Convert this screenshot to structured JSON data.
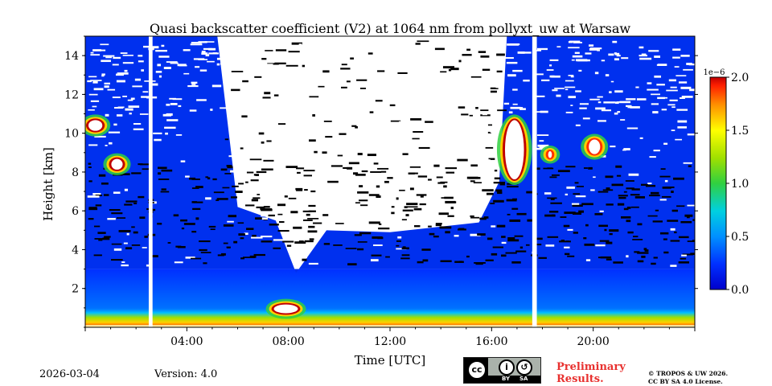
{
  "chart_data": {
    "type": "heatmap",
    "title": "Quasi backscatter coefficient (V2) at 1064 nm from pollyxt_uw at Warsaw",
    "xlabel": "Time [UTC]",
    "ylabel": "Height [km]",
    "xlim": [
      0,
      24
    ],
    "ylim": [
      0,
      15
    ],
    "x_tick_labels": [
      {
        "value": 4,
        "label": "04:00"
      },
      {
        "value": 8,
        "label": "08:00"
      },
      {
        "value": 12,
        "label": "12:00"
      },
      {
        "value": 16,
        "label": "16:00"
      },
      {
        "value": 20,
        "label": "20:00"
      }
    ],
    "y_ticks": [
      2,
      4,
      6,
      8,
      10,
      12,
      14
    ],
    "colorbar": {
      "min": 0.0,
      "max": 2.0,
      "scale_label": "1e−6",
      "ticks": [
        "0.0",
        "0.5",
        "1.0",
        "1.5",
        "2.0"
      ],
      "colormap": [
        "#0000cc",
        "#0040ff",
        "#00a0ff",
        "#00e0c0",
        "#30d040",
        "#a0e000",
        "#ffff00",
        "#ffa000",
        "#ff3000",
        "#c00000"
      ]
    },
    "data_gaps_hours": [
      [
        2.5,
        2.65
      ],
      [
        17.6,
        17.78
      ]
    ],
    "features": [
      {
        "name": "boundary layer aerosol",
        "time": [
          0,
          24
        ],
        "height": [
          0,
          0.9
        ],
        "value": 1.2
      },
      {
        "name": "cirrus cloud",
        "time": [
          0,
          0.8
        ],
        "height": [
          10,
          10.8
        ],
        "value": 2.0
      },
      {
        "name": "cirrus cloud",
        "time": [
          0.9,
          1.6
        ],
        "height": [
          8,
          8.8
        ],
        "value": 2.0
      },
      {
        "name": "cloud",
        "time": [
          7.3,
          8.5
        ],
        "height": [
          0.6,
          1.3
        ],
        "value": 2.0
      },
      {
        "name": "cloud",
        "time": [
          16.4,
          17.4
        ],
        "height": [
          7.5,
          10.8
        ],
        "value": 2.0
      },
      {
        "name": "cirrus cloud",
        "time": [
          18.1,
          18.5
        ],
        "height": [
          8.6,
          9.2
        ],
        "value": 1.8
      },
      {
        "name": "cirrus cloud",
        "time": [
          19.7,
          20.4
        ],
        "height": [
          8.8,
          9.8
        ],
        "value": 1.8
      }
    ]
  },
  "footer": {
    "date": "2026-03-04",
    "version": "Version: 4.0",
    "preliminary_line1": "Preliminary",
    "preliminary_line2": "Results.",
    "copyright_line1": "© TROPOS & UW 2026.",
    "copyright_line2": "CC BY SA 4.0 License.",
    "license_by": "BY",
    "license_sa": "SA"
  }
}
